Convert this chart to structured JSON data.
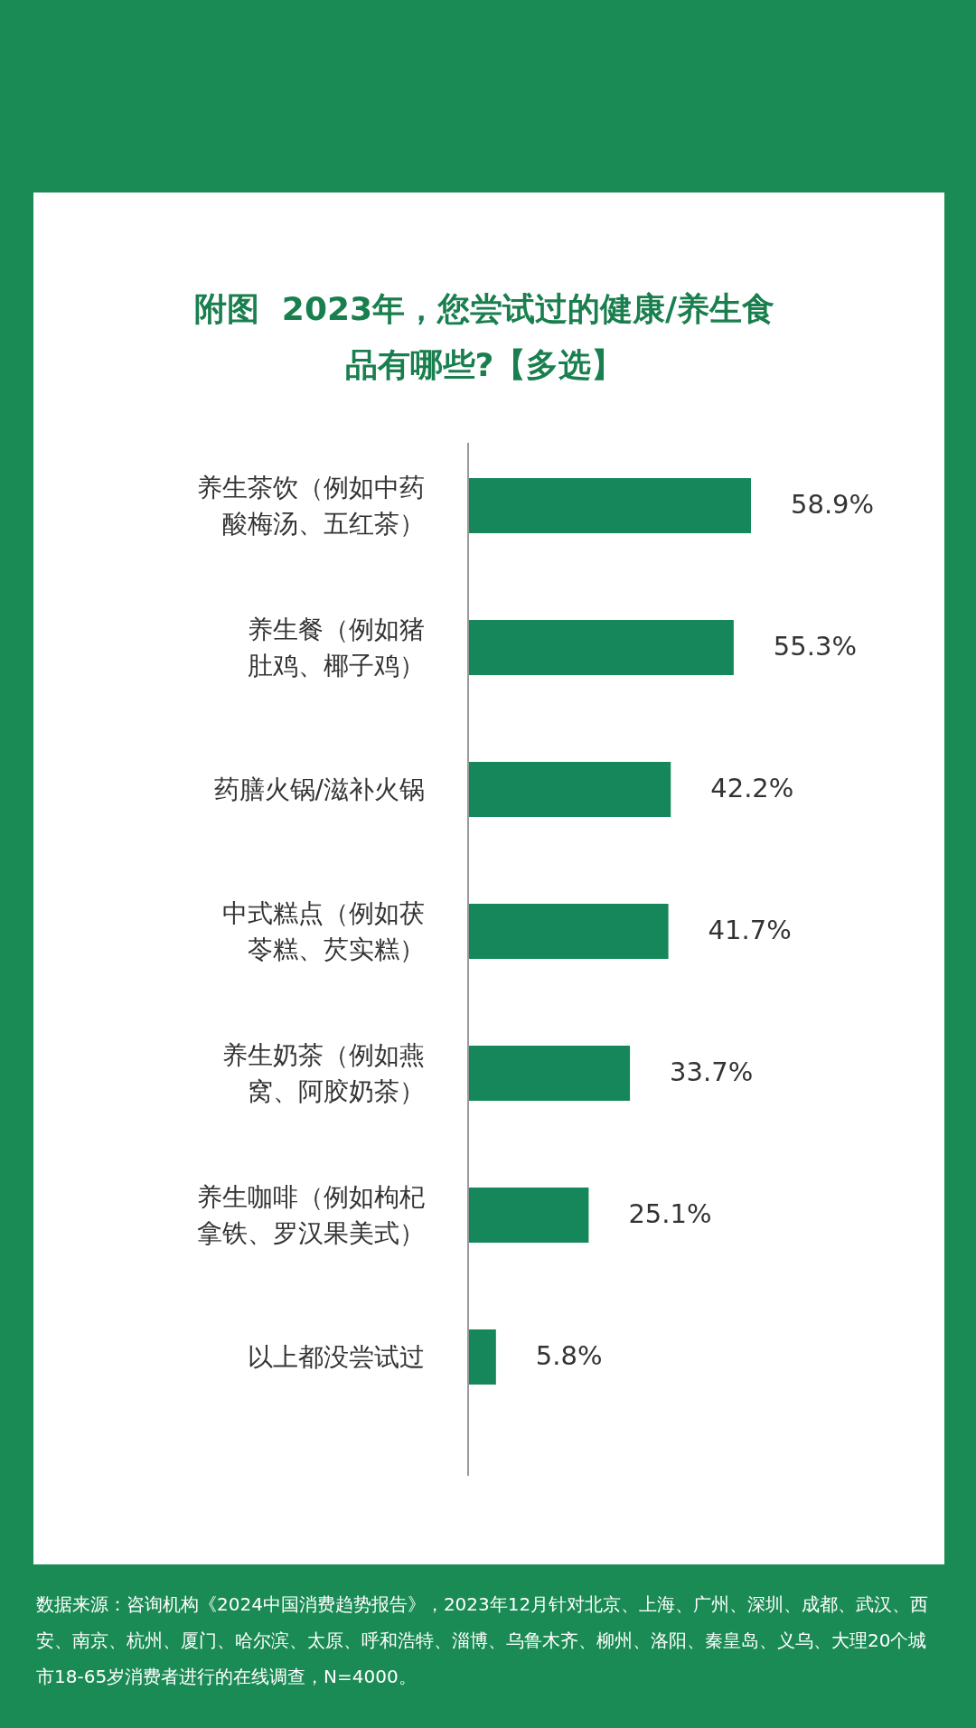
{
  "chart_data": {
    "type": "bar",
    "orientation": "horizontal",
    "title": "附图  2023年，您尝试过的健康/养生食品有哪些?【多选】",
    "categories": [
      "养生茶饮（例如中药酸梅汤、五红茶）",
      "养生餐（例如猪肚鸡、椰子鸡）",
      "药膳火锅/滋补火锅",
      "中式糕点（例如茯苓糕、芡实糕）",
      "养生奶茶（例如燕窝、阿胶奶茶）",
      "养生咖啡（例如枸杞拿铁、罗汉果美式）",
      "以上都没尝试过"
    ],
    "values": [
      58.9,
      55.3,
      42.2,
      41.7,
      33.7,
      25.1,
      5.8
    ],
    "value_labels": [
      "58.9%",
      "55.3%",
      "42.2%",
      "41.7%",
      "33.7%",
      "25.1%",
      "5.8%"
    ],
    "color": "#16875a",
    "annotations": [
      "数据来源：咨询机构《2024中国消费趋势报告》，2023年12月针对北京、上海、广州、深圳、成都、武汉、西安、南京、杭州、厦门、哈尔滨、太原、呼和浩特、淄博、乌鲁木齐、柳州、洛阳、秦皇岛、义乌、大理20个城市18-65岁消费者进行的在线调查，N=4000。"
    ]
  }
}
